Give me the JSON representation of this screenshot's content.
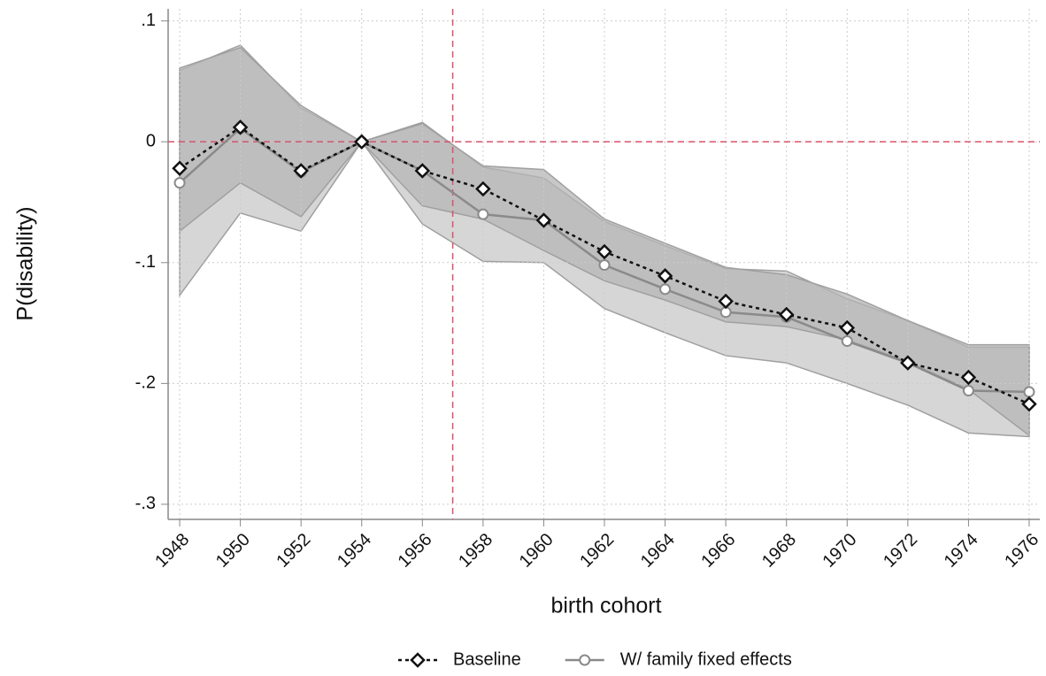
{
  "chart_data": {
    "type": "line_ci",
    "x_label": "birth cohort",
    "y_label": "P(disability)",
    "x": [
      1948,
      1950,
      1952,
      1954,
      1956,
      1958,
      1960,
      1962,
      1964,
      1966,
      1968,
      1970,
      1972,
      1974,
      1976
    ],
    "xlim": [
      1947.62,
      1976.35
    ],
    "xticks": [
      1948,
      1950,
      1952,
      1954,
      1956,
      1958,
      1960,
      1962,
      1964,
      1966,
      1968,
      1970,
      1972,
      1974,
      1976
    ],
    "ylim": [
      -0.3125,
      0.11
    ],
    "yticks": [
      {
        "value": 0.1,
        "label": ".1"
      },
      0,
      {
        "value": -0.1,
        "label": "-.1"
      },
      {
        "value": -0.2,
        "label": "-.2"
      },
      {
        "value": -0.3,
        "label": "-.3"
      }
    ],
    "grid": true,
    "vline": 1957,
    "hline": 0,
    "ref_color": "#d9536b",
    "legend": "bottom",
    "series": [
      {
        "name": "Baseline",
        "color": "#111111",
        "marker": "diamond",
        "dash": "dotted",
        "band_color": "#b5b5b5",
        "values": [
          -0.022,
          0.012,
          -0.024,
          0,
          -0.024,
          -0.039,
          -0.065,
          -0.091,
          -0.111,
          -0.132,
          -0.143,
          -0.154,
          -0.183,
          -0.195,
          -0.217
        ],
        "upper": [
          0.061,
          0.078,
          0.03,
          0,
          0.015,
          -0.02,
          -0.023,
          -0.064,
          -0.084,
          -0.104,
          -0.11,
          -0.126,
          -0.148,
          -0.168,
          -0.168
        ],
        "lower": [
          -0.074,
          -0.034,
          -0.062,
          0,
          -0.053,
          -0.064,
          -0.09,
          -0.115,
          -0.131,
          -0.149,
          -0.153,
          -0.164,
          -0.182,
          -0.205,
          -0.243
        ]
      },
      {
        "name": "W/ family fixed effects",
        "color": "#8a8a8a",
        "marker": "circle",
        "dash": "solid",
        "band_color": "#d6d6d6",
        "values": [
          -0.034,
          0.011,
          -0.025,
          0,
          -0.024,
          -0.06,
          -0.065,
          -0.102,
          -0.122,
          -0.141,
          -0.145,
          -0.165,
          -0.183,
          -0.206,
          -0.207
        ],
        "upper": [
          0.059,
          0.08,
          0.028,
          0,
          0.016,
          -0.021,
          -0.03,
          -0.066,
          -0.086,
          -0.105,
          -0.107,
          -0.13,
          -0.148,
          -0.17,
          -0.17
        ],
        "lower": [
          -0.127,
          -0.059,
          -0.074,
          0,
          -0.068,
          -0.099,
          -0.1,
          -0.138,
          -0.158,
          -0.177,
          -0.183,
          -0.2,
          -0.218,
          -0.241,
          -0.244
        ]
      }
    ]
  }
}
